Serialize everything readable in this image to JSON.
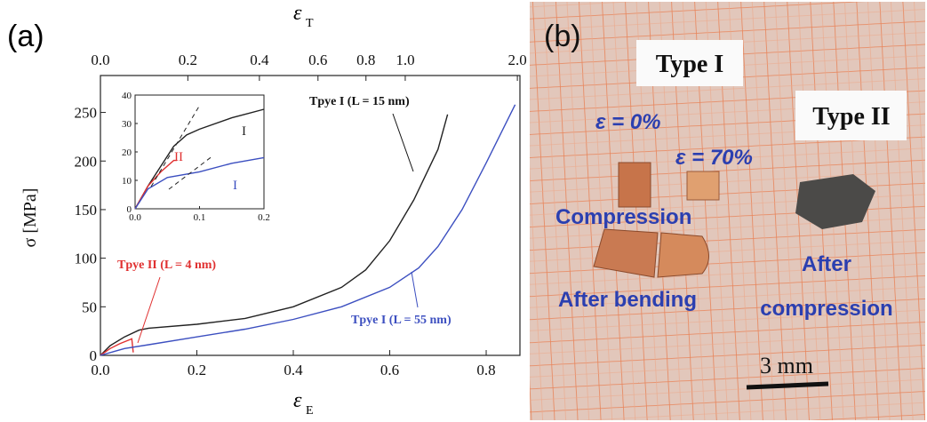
{
  "panel_labels": [
    "(a)",
    "(b)"
  ],
  "chart_data": [
    {
      "type": "line",
      "x_label": {
        "symbol": "ε",
        "subscript": "E"
      },
      "x2_label": {
        "symbol": "ε",
        "subscript": "T"
      },
      "y_label": "σ [MPa]",
      "xlim": [
        0,
        0.87
      ],
      "ylim": [
        0,
        288
      ],
      "xticks": [
        {
          "value": 0,
          "label": "0.0"
        },
        0.2,
        0.4,
        0.6,
        0.8
      ],
      "x2ticks": [
        {
          "value": 0,
          "label": "0.0"
        },
        0.2,
        0.4,
        0.6,
        0.8,
        {
          "value": 1,
          "label": "1.0"
        },
        {
          "value": 2,
          "label": "2.0"
        }
      ],
      "yticks": [
        0,
        50,
        100,
        150,
        200,
        250
      ],
      "series": [
        {
          "name": "Tpye I (L = 15 nm)",
          "color": "#222222",
          "x": [
            0,
            0.02,
            0.05,
            0.08,
            0.1,
            0.2,
            0.3,
            0.4,
            0.5,
            0.55,
            0.6,
            0.65,
            0.7,
            0.72
          ],
          "values": [
            0,
            10,
            19,
            26,
            28,
            32,
            38,
            50,
            70,
            88,
            118,
            160,
            212,
            248
          ]
        },
        {
          "name": "Tpye II (L = 4 nm)",
          "color": "#e03030",
          "x": [
            0,
            0.02,
            0.04,
            0.06,
            0.065,
            0.068
          ],
          "values": [
            0,
            7,
            12,
            16,
            17,
            3
          ]
        },
        {
          "name": "Tpye I (L = 55 nm)",
          "color": "#3c4fc0",
          "x": [
            0,
            0.05,
            0.1,
            0.2,
            0.3,
            0.4,
            0.5,
            0.6,
            0.66,
            0.7,
            0.75,
            0.8,
            0.86
          ],
          "values": [
            0,
            7,
            11,
            19,
            27,
            37,
            50,
            70,
            90,
            112,
            150,
            198,
            258
          ]
        }
      ]
    },
    {
      "type": "line",
      "xlim": [
        0,
        0.2
      ],
      "ylim": [
        0,
        40
      ],
      "xticks": [
        {
          "value": 0,
          "label": "0.0"
        },
        0.1,
        0.2
      ],
      "yticks": [
        0,
        10,
        20,
        30,
        40
      ],
      "series": [
        {
          "name": "I",
          "color": "#222222",
          "x": [
            0,
            0.02,
            0.04,
            0.06,
            0.08,
            0.1,
            0.15,
            0.2
          ],
          "values": [
            0,
            8,
            15,
            22,
            26,
            28,
            32,
            35
          ]
        },
        {
          "name": "II",
          "color": "#e03030",
          "x": [
            0,
            0.02,
            0.04,
            0.06,
            0.065
          ],
          "values": [
            0,
            8,
            13,
            17,
            17
          ]
        },
        {
          "name": "I",
          "color": "#3c4fc0",
          "x": [
            0,
            0.02,
            0.05,
            0.1,
            0.15,
            0.2
          ],
          "values": [
            0,
            7,
            11,
            13,
            16,
            18
          ]
        }
      ]
    }
  ],
  "photo": {
    "type_1": "Type I",
    "type_2": "Type II",
    "strain_0": "ε = 0%",
    "strain_70": "ε = 70%",
    "compression": "Compression",
    "after_bending": "After bending",
    "after_compression": [
      "After",
      "compression"
    ],
    "scale": "3 mm"
  }
}
